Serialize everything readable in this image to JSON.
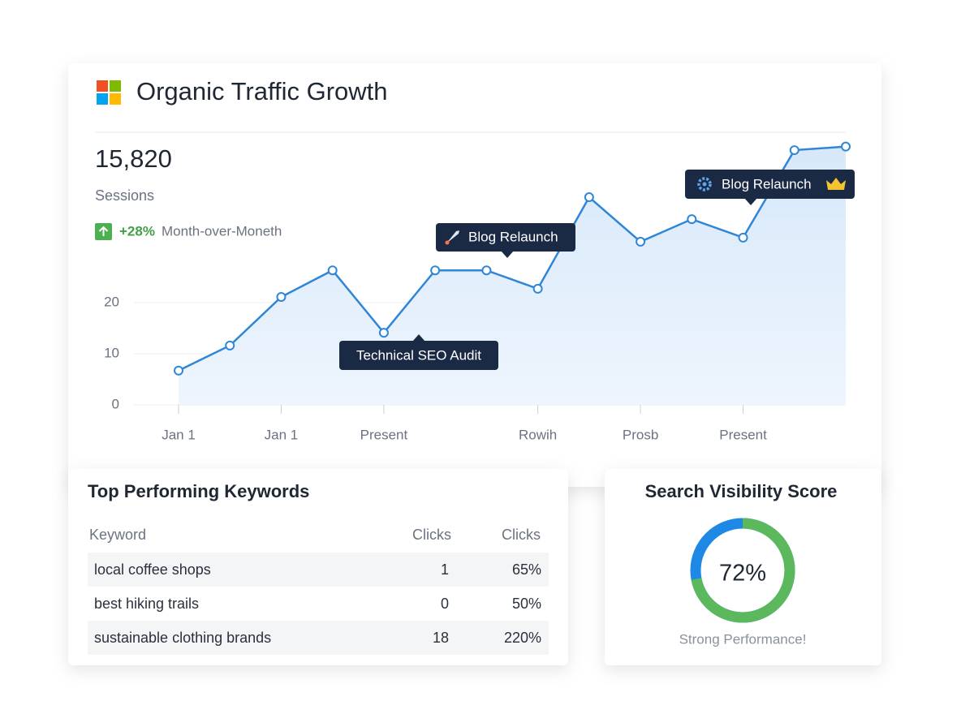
{
  "header": {
    "title": "Organic Traffic Growth",
    "metric": "15,820",
    "metric_label": "Sessions",
    "change": "+28%",
    "change_label": "Month-over-Moneth"
  },
  "chart_data": {
    "type": "line",
    "categories": [
      "Jan 1",
      null,
      "Jan 1",
      null,
      "Present",
      null,
      null,
      "Rowih",
      null,
      "Prosb",
      null,
      "Present",
      null,
      null
    ],
    "series": [
      {
        "color": "#2f86d6",
        "values": [
          6.7,
          11.6,
          21.1,
          26.3,
          14.1,
          26.3,
          26.3,
          22.7,
          40.6,
          31.9,
          36.3,
          32.7,
          49.8,
          50.5
        ]
      }
    ],
    "ylim": [
      0,
      53.3
    ],
    "yticks": [
      0,
      10,
      20
    ],
    "grid": true,
    "annotations": [
      "Technical SEO Audit",
      "Blog Relaunch",
      "Blog Relaunch"
    ]
  },
  "keywords": {
    "title": "Top Performing Keywords",
    "columns": [
      "Keyword",
      "Clicks",
      "Clicks"
    ],
    "rows": [
      [
        "local coffee shops",
        "1",
        "65%"
      ],
      [
        "best hiking trails",
        "0",
        "50%"
      ],
      [
        "sustainable clothing brands",
        "18",
        "220%"
      ]
    ]
  },
  "visibility": {
    "title": "Search Visibility Score",
    "score": 72,
    "score_label": "72%",
    "caption": "Strong Performance!"
  }
}
